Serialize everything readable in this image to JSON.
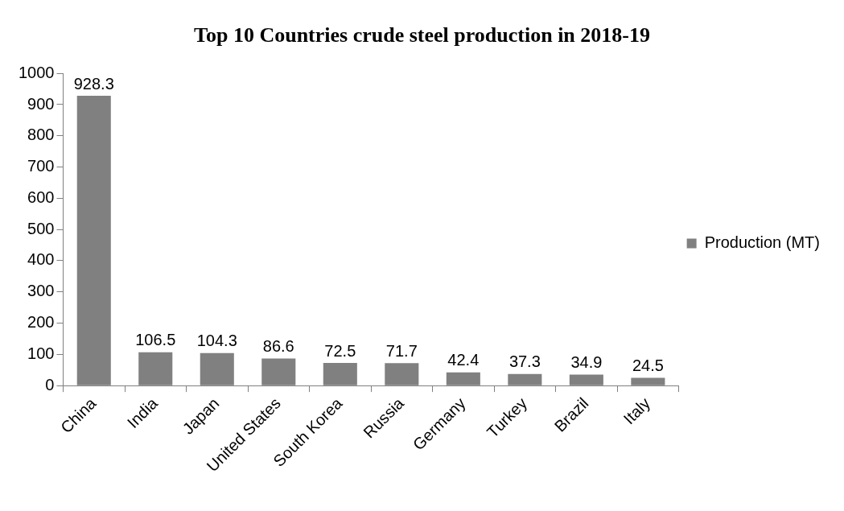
{
  "chart_data": {
    "type": "bar",
    "title": "Top 10 Countries crude steel production in 2018-19",
    "categories": [
      "China",
      "India",
      "Japan",
      "United States",
      "South Korea",
      "Russia",
      "Germany",
      "Turkey",
      "Brazil",
      "Italy"
    ],
    "series": [
      {
        "name": "Production (MT)",
        "color": "#808080",
        "values": [
          928.3,
          106.5,
          104.3,
          86.6,
          72.5,
          71.7,
          42.4,
          37.3,
          34.9,
          24.5
        ]
      }
    ],
    "ylim": [
      0,
      1000
    ],
    "yticks": [
      0,
      100,
      200,
      300,
      400,
      500,
      600,
      700,
      800,
      900,
      1000
    ],
    "grid": false,
    "legend": "right",
    "data_labels": true
  }
}
